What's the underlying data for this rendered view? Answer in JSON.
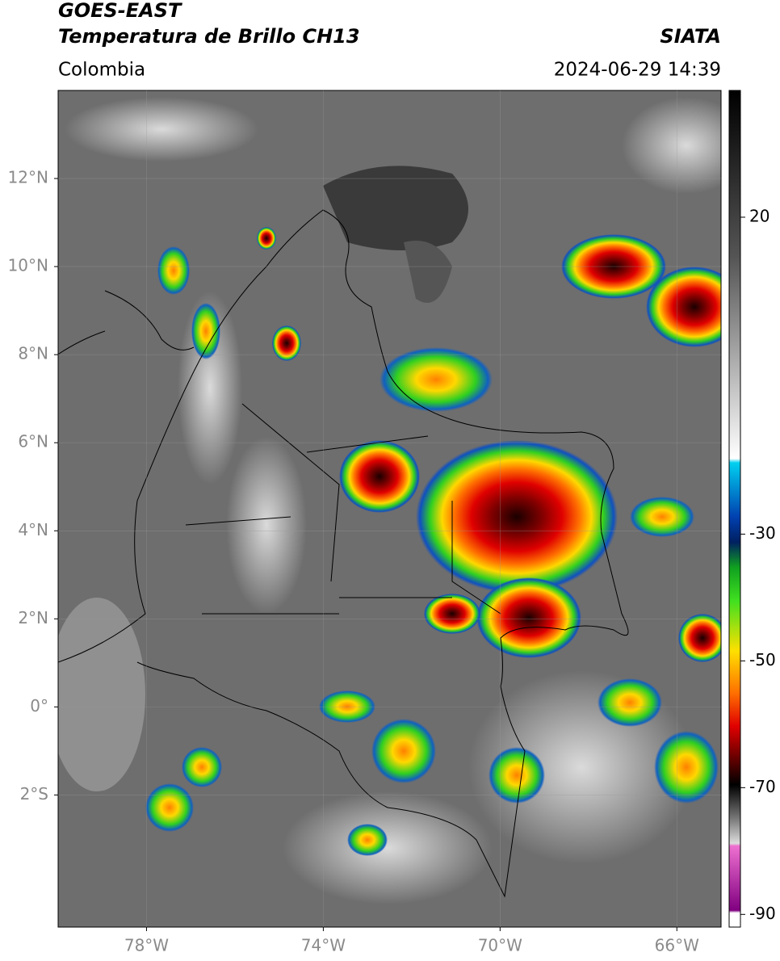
{
  "header": {
    "title": "GOES-EAST",
    "subtitle": "Temperatura de Brillo CH13",
    "source": "SIATA",
    "region": "Colombia",
    "timestamp": "2024-06-29 14:39"
  },
  "map": {
    "xlim": [
      -80,
      -65
    ],
    "ylim": [
      -5,
      14
    ],
    "grid": true,
    "xticks": [
      {
        "value": -78,
        "label": "78°W"
      },
      {
        "value": -74,
        "label": "74°W"
      },
      {
        "value": -70,
        "label": "70°W"
      },
      {
        "value": -66,
        "label": "66°W"
      }
    ],
    "yticks": [
      {
        "value": 12,
        "label": "12°N"
      },
      {
        "value": 10,
        "label": "10°N"
      },
      {
        "value": 8,
        "label": "8°N"
      },
      {
        "value": 6,
        "label": "6°N"
      },
      {
        "value": 4,
        "label": "4°N"
      },
      {
        "value": 2,
        "label": "2°N"
      },
      {
        "value": 0,
        "label": "0°"
      },
      {
        "value": -2,
        "label": "2°S"
      }
    ]
  },
  "colorbar": {
    "lim": [
      -92,
      40
    ],
    "ticks": [
      20,
      -30,
      -50,
      -70,
      -90
    ]
  }
}
